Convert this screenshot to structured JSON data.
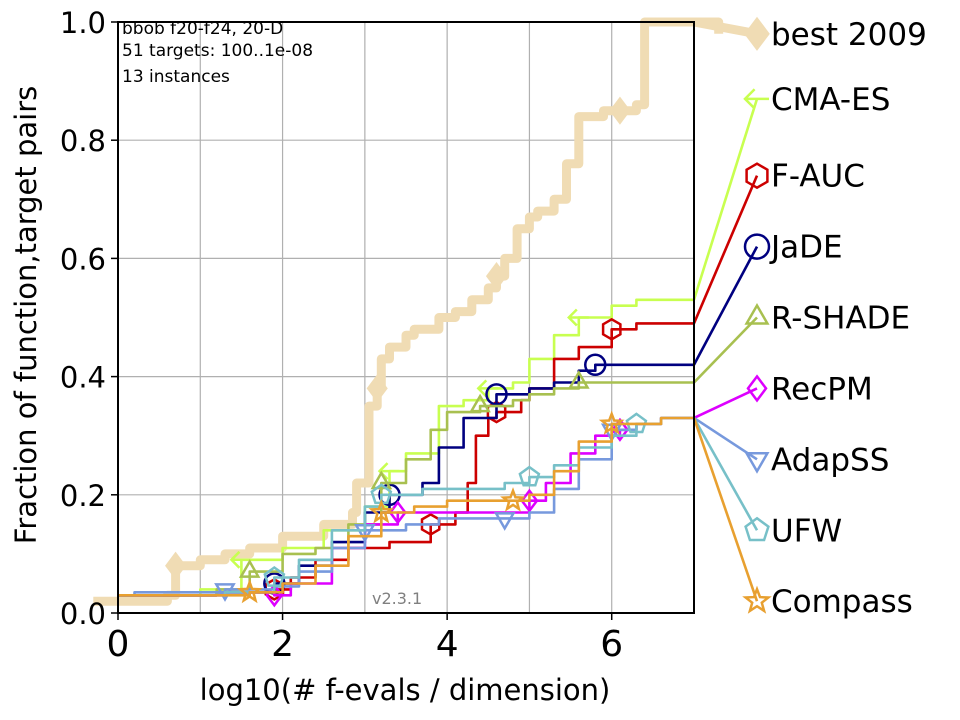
{
  "chart_data": {
    "type": "line",
    "step": true,
    "info_lines": [
      "bbob f20-f24, 20-D",
      "51 targets: 100..1e-08",
      "13 instances"
    ],
    "version": "v2.3.1",
    "xlabel": "log10(# f-evals / dimension)",
    "ylabel": "Fraction of function,target pairs",
    "xlim": [
      0,
      7
    ],
    "ylim": [
      0,
      1.0
    ],
    "x_ticks": [
      0,
      2,
      4,
      6
    ],
    "x_tick_labels": [
      "0",
      "2",
      "4",
      "6"
    ],
    "y_ticks": [
      0.0,
      0.2,
      0.4,
      0.6,
      0.8,
      1.0
    ],
    "y_tick_labels": [
      "0.0",
      "0.2",
      "0.4",
      "0.6",
      "0.8",
      "1.0"
    ],
    "grid": true,
    "legend_placement": "right, outside plot",
    "series": [
      {
        "name": "best 2009",
        "color": "#f0dcb4",
        "marker": "diamond",
        "legend_value": 0.98,
        "x": [
          -0.3,
          0.6,
          0.7,
          1.0,
          1.3,
          1.6,
          2.0,
          2.5,
          2.85,
          2.9,
          3.05,
          3.15,
          3.2,
          3.3,
          3.5,
          3.6,
          3.9,
          4.1,
          4.3,
          4.5,
          4.6,
          4.7,
          4.85,
          5.0,
          5.1,
          5.3,
          5.45,
          5.6,
          5.9,
          6.1,
          6.3,
          6.32,
          6.4,
          6.6,
          6.8,
          7.0,
          7.3
        ],
        "y": [
          0.02,
          0.03,
          0.08,
          0.09,
          0.1,
          0.11,
          0.13,
          0.15,
          0.17,
          0.22,
          0.35,
          0.38,
          0.43,
          0.45,
          0.47,
          0.48,
          0.5,
          0.51,
          0.53,
          0.55,
          0.57,
          0.6,
          0.65,
          0.67,
          0.68,
          0.7,
          0.76,
          0.84,
          0.85,
          0.85,
          0.86,
          0.86,
          1.0,
          1.0,
          1.0,
          1.0,
          0.98
        ]
      },
      {
        "name": "CMA-ES",
        "color": "#c8ff50",
        "marker": "tri_left",
        "legend_value": 0.87,
        "x": [
          0.0,
          1.0,
          1.5,
          2.0,
          2.5,
          3.0,
          3.3,
          3.5,
          3.9,
          4.2,
          4.5,
          4.8,
          5.0,
          5.3,
          5.6,
          6.0,
          6.3,
          6.6,
          7.0
        ],
        "y": [
          0.03,
          0.04,
          0.09,
          0.11,
          0.14,
          0.18,
          0.24,
          0.27,
          0.35,
          0.36,
          0.38,
          0.39,
          0.43,
          0.47,
          0.5,
          0.52,
          0.53,
          0.53,
          0.53
        ]
      },
      {
        "name": "F-AUC",
        "color": "#cc0000",
        "marker": "hexagon",
        "legend_value": 0.74,
        "x": [
          0.0,
          1.2,
          1.9,
          2.1,
          2.4,
          2.8,
          3.3,
          3.8,
          4.1,
          4.25,
          4.35,
          4.5,
          4.6,
          4.9,
          5.0,
          5.3,
          5.6,
          6.0,
          6.3,
          6.6,
          7.0
        ],
        "y": [
          0.03,
          0.035,
          0.04,
          0.06,
          0.09,
          0.11,
          0.12,
          0.15,
          0.17,
          0.22,
          0.3,
          0.33,
          0.34,
          0.36,
          0.38,
          0.43,
          0.45,
          0.48,
          0.49,
          0.49,
          0.49
        ]
      },
      {
        "name": "JaDE",
        "color": "#000080",
        "marker": "circle",
        "legend_value": 0.62,
        "x": [
          0.0,
          1.2,
          1.9,
          2.2,
          2.6,
          3.0,
          3.3,
          3.7,
          3.9,
          4.2,
          4.6,
          5.0,
          5.3,
          5.6,
          5.8,
          6.1,
          6.6,
          7.0
        ],
        "y": [
          0.03,
          0.035,
          0.05,
          0.08,
          0.12,
          0.17,
          0.2,
          0.22,
          0.28,
          0.33,
          0.37,
          0.38,
          0.39,
          0.41,
          0.42,
          0.42,
          0.42,
          0.42
        ]
      },
      {
        "name": "R-SHADE",
        "color": "#a8c050",
        "marker": "triangle_up",
        "legend_value": 0.5,
        "x": [
          0.0,
          1.2,
          1.6,
          2.0,
          2.4,
          2.8,
          3.2,
          3.5,
          3.8,
          4.0,
          4.4,
          4.8,
          5.0,
          5.3,
          5.6,
          6.0,
          6.3,
          6.6,
          7.0
        ],
        "y": [
          0.03,
          0.04,
          0.07,
          0.1,
          0.11,
          0.15,
          0.22,
          0.26,
          0.31,
          0.34,
          0.35,
          0.36,
          0.37,
          0.38,
          0.39,
          0.39,
          0.39,
          0.39,
          0.39
        ]
      },
      {
        "name": "RecPM",
        "color": "#dd00ff",
        "marker": "diamond",
        "legend_value": 0.38,
        "x": [
          0.0,
          1.3,
          1.9,
          2.1,
          2.6,
          3.0,
          3.4,
          3.8,
          4.2,
          4.6,
          5.0,
          5.2,
          5.5,
          5.8,
          6.1,
          6.3,
          6.6,
          7.0
        ],
        "y": [
          0.03,
          0.035,
          0.03,
          0.05,
          0.11,
          0.15,
          0.17,
          0.17,
          0.17,
          0.17,
          0.19,
          0.22,
          0.27,
          0.3,
          0.31,
          0.32,
          0.33,
          0.33
        ]
      },
      {
        "name": "AdapSS",
        "color": "#7799dd",
        "marker": "triangle_down",
        "legend_value": 0.26,
        "x": [
          0.0,
          0.2,
          1.3,
          1.9,
          2.2,
          2.6,
          3.0,
          3.5,
          3.9,
          4.3,
          4.7,
          5.0,
          5.3,
          5.6,
          6.0,
          6.3,
          6.6,
          7.0
        ],
        "y": [
          0.03,
          0.035,
          0.04,
          0.045,
          0.07,
          0.11,
          0.14,
          0.15,
          0.16,
          0.16,
          0.16,
          0.17,
          0.21,
          0.26,
          0.31,
          0.32,
          0.33,
          0.33
        ]
      },
      {
        "name": "UFW",
        "color": "#77c0c8",
        "marker": "pentagon",
        "legend_value": 0.14,
        "x": [
          0.0,
          1.3,
          1.9,
          2.2,
          2.6,
          3.0,
          3.2,
          3.7,
          4.2,
          4.7,
          5.0,
          5.3,
          5.6,
          6.0,
          6.3,
          6.6,
          7.0
        ],
        "y": [
          0.03,
          0.035,
          0.06,
          0.09,
          0.14,
          0.18,
          0.2,
          0.21,
          0.21,
          0.22,
          0.23,
          0.25,
          0.28,
          0.3,
          0.32,
          0.33,
          0.33
        ]
      },
      {
        "name": "Compass",
        "color": "#e8a030",
        "marker": "star",
        "legend_value": 0.02,
        "x": [
          0.0,
          1.1,
          1.6,
          2.0,
          2.4,
          2.8,
          3.2,
          3.6,
          4.0,
          4.4,
          4.8,
          5.0,
          5.3,
          5.6,
          6.0,
          6.2,
          6.6,
          7.0
        ],
        "y": [
          0.03,
          0.03,
          0.035,
          0.05,
          0.08,
          0.13,
          0.17,
          0.18,
          0.19,
          0.19,
          0.19,
          0.2,
          0.24,
          0.29,
          0.32,
          0.32,
          0.33,
          0.33
        ]
      }
    ]
  }
}
